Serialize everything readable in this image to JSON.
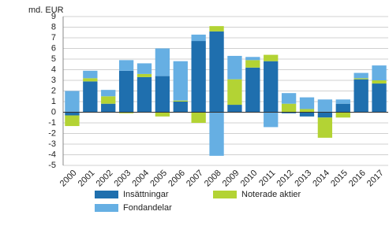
{
  "chart_data": {
    "type": "stacked_bar",
    "y_label": "md. EUR",
    "categories": [
      "2000",
      "2001",
      "2002",
      "2003",
      "2004",
      "2005",
      "2006",
      "2007",
      "2008",
      "2009",
      "2010",
      "2011",
      "2012",
      "2013",
      "2014",
      "2015",
      "2016",
      "2017"
    ],
    "series": [
      {
        "name": "Insättningar",
        "color": "#1f6fae",
        "values": [
          -0.3,
          2.9,
          0.8,
          3.9,
          3.3,
          3.4,
          1.0,
          6.7,
          7.6,
          0.7,
          4.2,
          4.8,
          -0.1,
          -0.4,
          -0.5,
          0.8,
          3.1,
          2.7
        ]
      },
      {
        "name": "Noterade aktier",
        "color": "#b3d334",
        "values": [
          -1.0,
          0.3,
          0.7,
          -0.1,
          0.3,
          -0.4,
          0.1,
          -1.0,
          0.5,
          2.4,
          0.7,
          0.6,
          0.8,
          0.3,
          -1.9,
          -0.5,
          0.1,
          0.3
        ]
      },
      {
        "name": "Fondandelar",
        "color": "#66afe3",
        "values": [
          2.0,
          0.7,
          0.6,
          1.0,
          1.0,
          2.6,
          3.7,
          0.6,
          -4.1,
          2.2,
          0.3,
          -1.4,
          1.0,
          1.1,
          1.2,
          0.4,
          0.5,
          1.4
        ]
      }
    ],
    "ylim": [
      -5,
      9
    ],
    "yticks": [
      -5,
      -4,
      -3,
      -2,
      -1,
      0,
      1,
      2,
      3,
      4,
      5,
      6,
      7,
      8,
      9
    ],
    "grid": true
  }
}
